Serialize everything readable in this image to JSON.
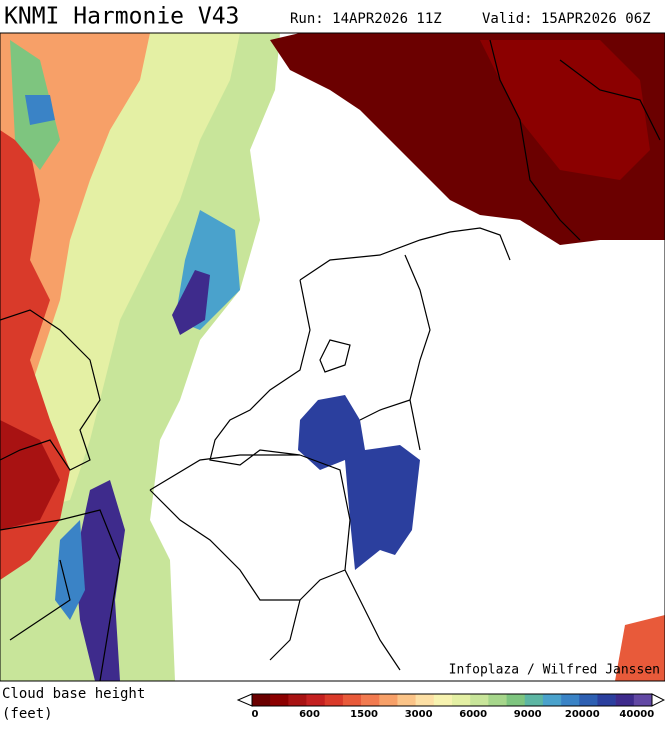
{
  "header": {
    "title": "KNMI Harmonie V43",
    "run": "Run: 14APR2026 11Z",
    "valid": "Valid: 15APR2026 06Z"
  },
  "map": {
    "credit": "Infoplaza / Wilfred Janssen"
  },
  "legend": {
    "title": "Cloud base height",
    "unit": "(feet)",
    "labels": [
      0,
      600,
      1500,
      3000,
      6000,
      9000,
      20000,
      40000
    ],
    "colors": [
      "#6b0000",
      "#8b0000",
      "#a81212",
      "#c42020",
      "#d93a2a",
      "#e85a3a",
      "#f27b50",
      "#f7a068",
      "#fbc488",
      "#fde0a5",
      "#f7f3b0",
      "#e4f0a4",
      "#c8e59a",
      "#a6d68b",
      "#7ec57f",
      "#5db6a3",
      "#4aa2cc",
      "#3a83c6",
      "#2d5fb2",
      "#2b3f9e",
      "#3e2b8c",
      "#6248a4"
    ]
  }
}
